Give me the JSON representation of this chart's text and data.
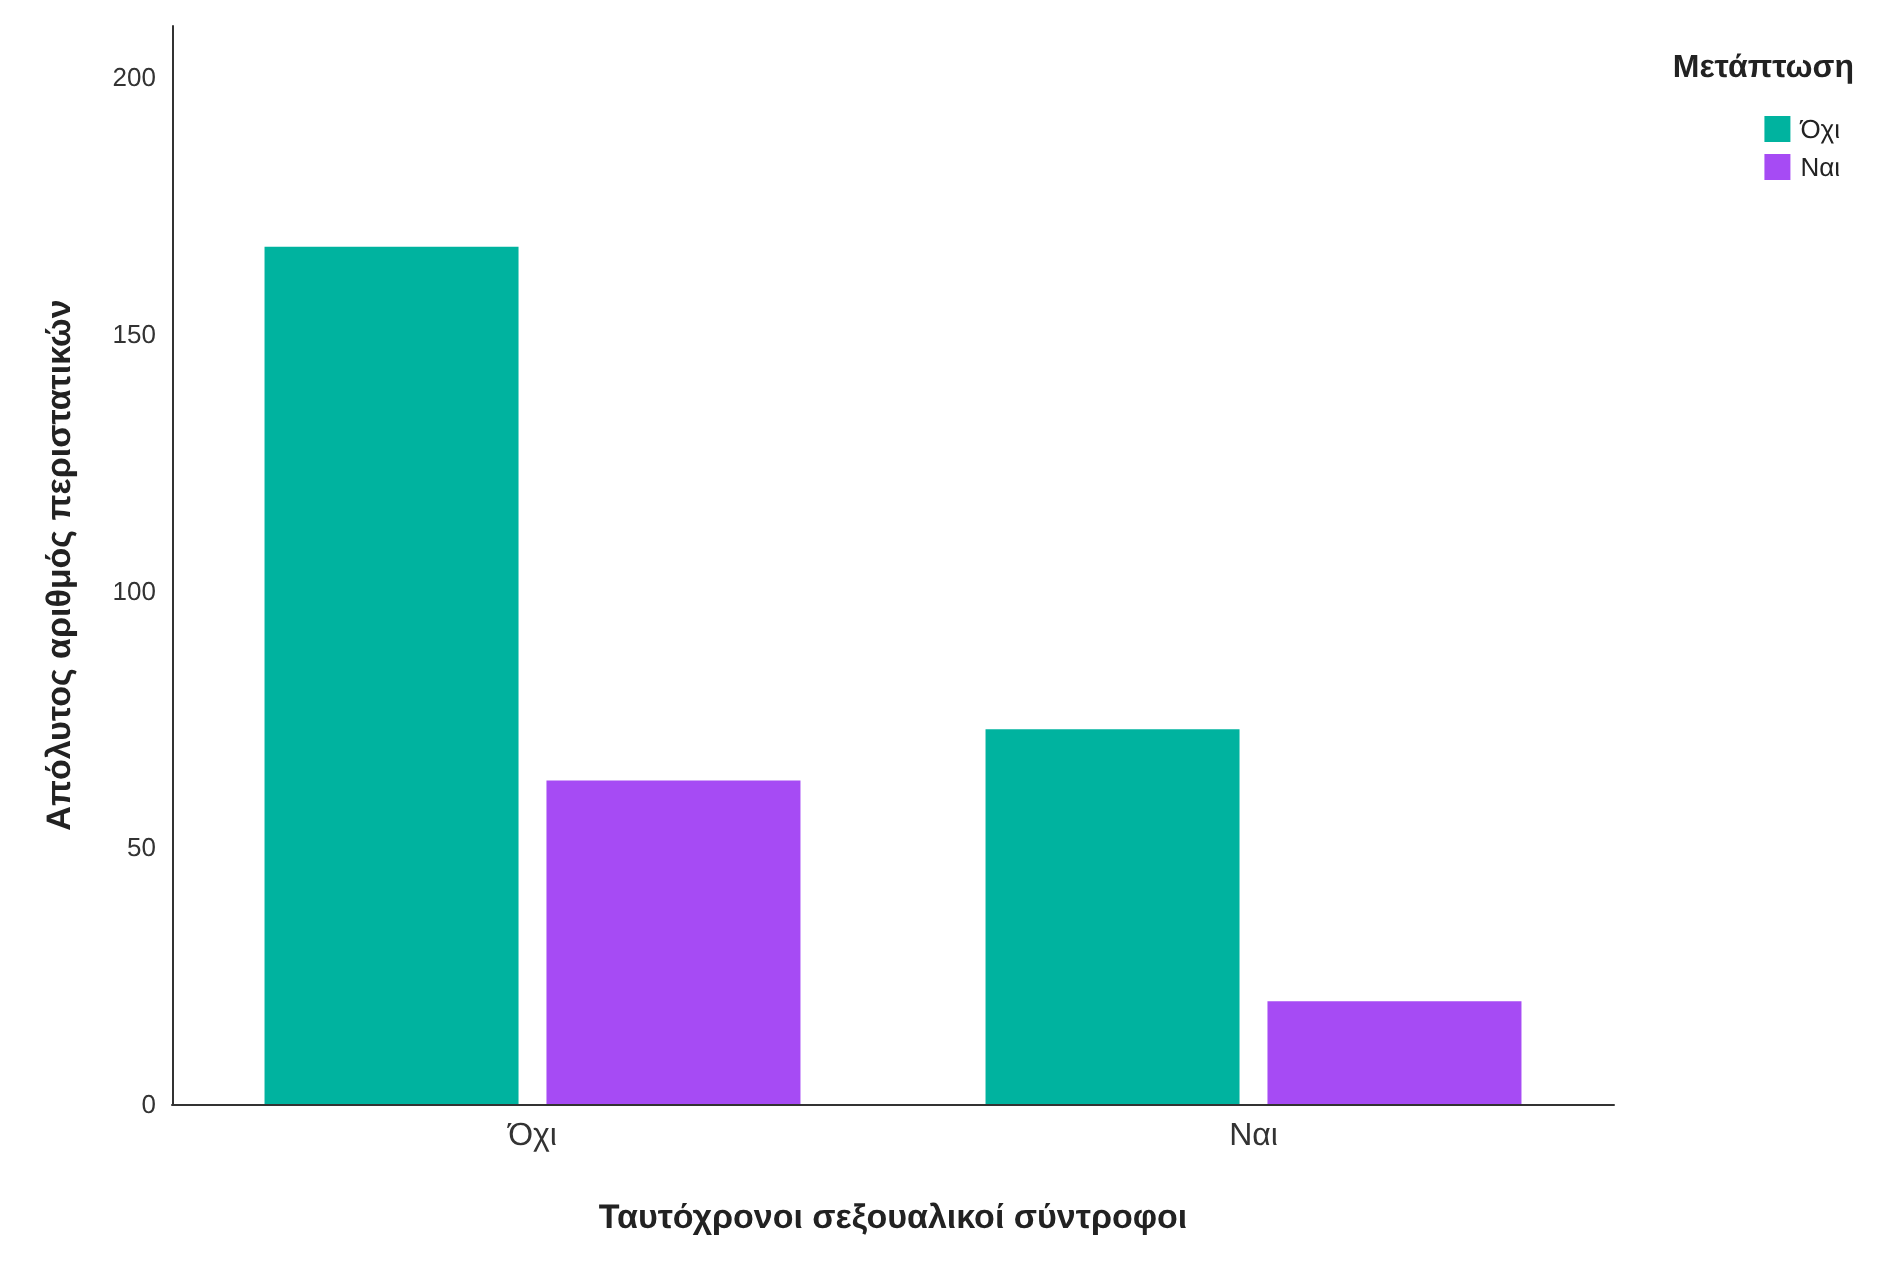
{
  "chart_data": {
    "type": "bar",
    "xlabel": "Ταυτόχρονοι σεξουαλικοί σύντροφοι",
    "ylabel": "Απόλυτος αριθμός περιστατικών",
    "legend_title": "Μετάπτωση",
    "categories": [
      "Όχι",
      "Ναι"
    ],
    "series": [
      {
        "name": "Όχι",
        "color": "#00b39f",
        "values": [
          167,
          73
        ]
      },
      {
        "name": "Ναι",
        "color": "#a64bf4",
        "values": [
          63,
          20
        ]
      }
    ],
    "ylim": [
      0,
      210
    ],
    "yticks": [
      0,
      50,
      100,
      150,
      200
    ],
    "grid": false,
    "legend": "top right"
  }
}
